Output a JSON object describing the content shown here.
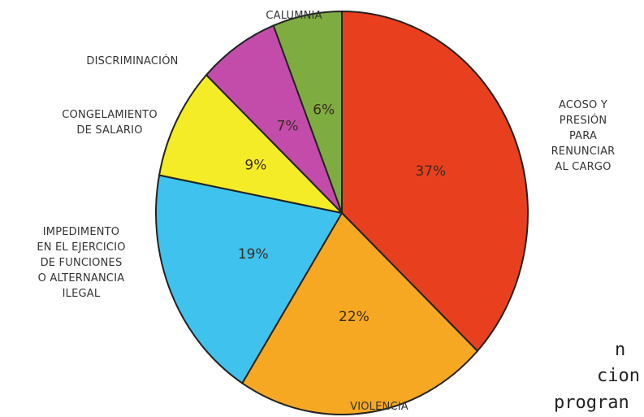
{
  "chart_data": {
    "type": "pie",
    "categories": [
      "ACOSO Y\nPRESIÓN PARA\nRENUNCIAR\nAL CARGO",
      "VIOLENCIA",
      "IMPEDIMENTO\nEN EL EJERCICIO\nDE FUNCIONES\nO ALTERNANCIA\nILEGAL",
      "CONGELAMIENTO\nDE SALARIO",
      "DISCRIMINACIÓN",
      "CALUMNIA"
    ],
    "values": [
      37,
      22,
      19,
      9,
      7,
      6
    ],
    "value_labels": [
      "37%",
      "22%",
      "19%",
      "9%",
      "7%",
      "6%"
    ],
    "colors": [
      "#e8401f",
      "#f7a823",
      "#3fc3ee",
      "#f4ec26",
      "#c34caa",
      "#7fac40"
    ]
  },
  "background_text": [
    "n",
    "cion",
    "progran"
  ]
}
